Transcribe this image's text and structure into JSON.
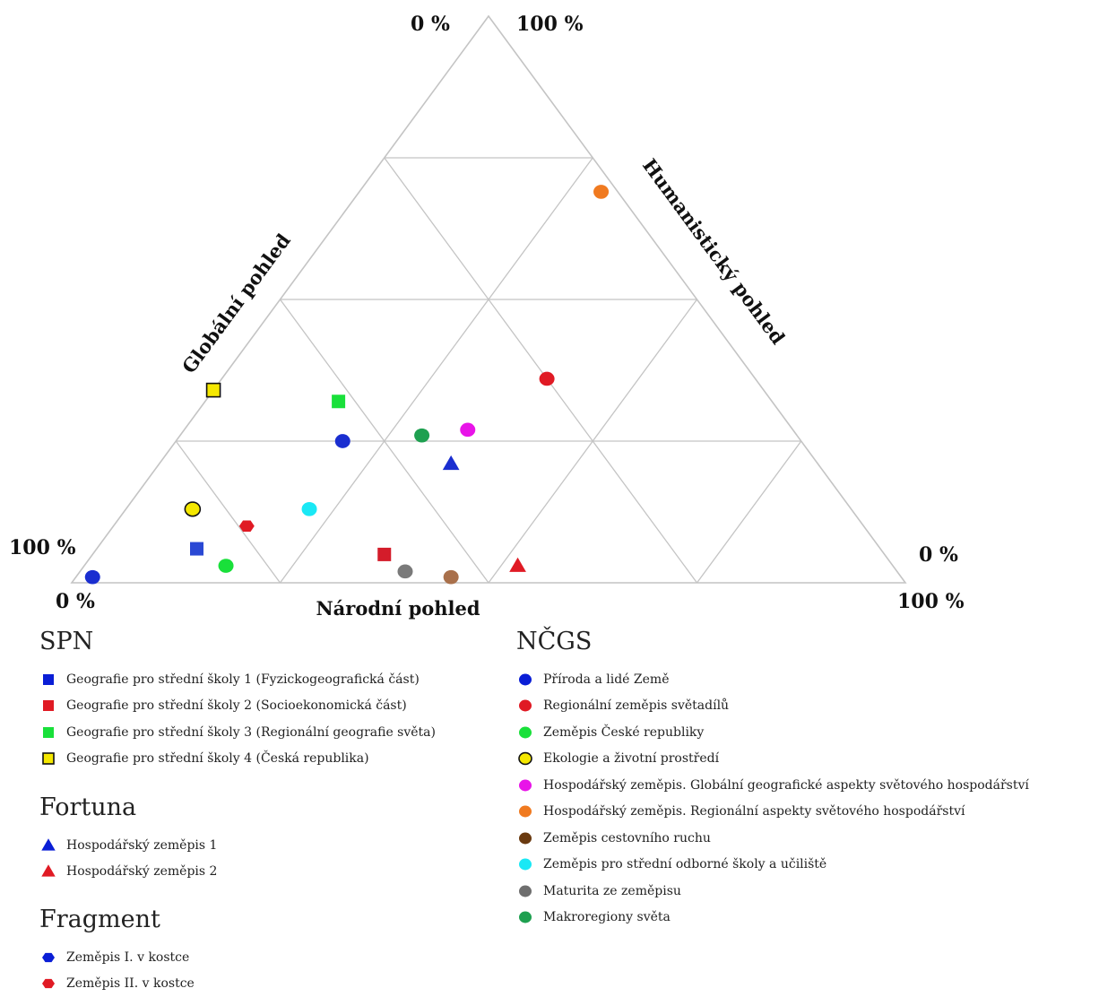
{
  "chart_data": {
    "type": "ternary",
    "corner_labels": {
      "top_left": "0 %",
      "top_right": "100 %",
      "left": "100 %",
      "bottom_left": "0 %",
      "right": "0 %",
      "bottom_right": "100 %"
    },
    "axes": {
      "left": "Globální pohled",
      "right": "Humanistický pohled",
      "bottom": "Národní pohled"
    },
    "grid_divisions": 4,
    "colors": {
      "blue": "#0a1ed6",
      "red": "#e01a24",
      "green": "#19e03a",
      "yellow": "#f5e800",
      "magenta": "#e814e8",
      "orange": "#f07a20",
      "brown": "#a9704b",
      "cyan": "#1ae8f5",
      "gray": "#7a7a7a",
      "darkgreen": "#1ea050",
      "grid": "#c4c4c4"
    },
    "series": [
      {
        "name": "Geografie pro střední školy 1 (Fyzickogeografická část)",
        "marker": "square",
        "fill": "#2a48d4",
        "points": [
          {
            "global": 0.12,
            "national": 0.82,
            "humanistic": 0.06
          }
        ]
      },
      {
        "name": "Geografie pro střední školy 2 (Socioekonomická část)",
        "marker": "square",
        "fill": "#d41c2a",
        "points": [
          {
            "global": 0.35,
            "national": 0.6,
            "humanistic": 0.05
          }
        ]
      },
      {
        "name": "Geografie pro střední školy 3 (Regionální geografie světa)",
        "marker": "square",
        "fill": "#19e03a",
        "points": [
          {
            "global": 0.16,
            "national": 0.52,
            "humanistic": 0.32
          }
        ]
      },
      {
        "name": "Geografie pro střední školy 4 (Česká republika)",
        "marker": "square-outline",
        "fill": "#f5e800",
        "points": [
          {
            "global": 0.0,
            "national": 0.66,
            "humanistic": 0.34
          }
        ]
      },
      {
        "name": "Hospodářský zeměpis 1",
        "marker": "triangle",
        "fill": "#1a2ed0",
        "points": [
          {
            "global": 0.35,
            "national": 0.44,
            "humanistic": 0.21
          }
        ]
      },
      {
        "name": "Hospodářský zeměpis 2",
        "marker": "triangle",
        "fill": "#e01a24",
        "points": [
          {
            "global": 0.52,
            "national": 0.45,
            "humanistic": 0.03
          }
        ]
      },
      {
        "name": "Zeměpis I. v kostce",
        "marker": "hexagon",
        "fill": "#1a2ed0",
        "points": []
      },
      {
        "name": "Zeměpis II. v kostce",
        "marker": "hexagon",
        "fill": "#e01a24",
        "points": [
          {
            "global": 0.16,
            "national": 0.74,
            "humanistic": 0.1
          }
        ]
      },
      {
        "name": "Příroda a lidé Země",
        "marker": "circle",
        "fill": "#1a2ed0",
        "points": [
          {
            "global": 0.02,
            "national": 0.97,
            "humanistic": 0.01
          },
          {
            "global": 0.2,
            "national": 0.55,
            "humanistic": 0.25
          }
        ]
      },
      {
        "name": "Regionální zeměpis světadílů",
        "marker": "circle",
        "fill": "#e01a24",
        "points": [
          {
            "global": 0.39,
            "national": 0.25,
            "humanistic": 0.36
          }
        ]
      },
      {
        "name": "Zeměpis České republiky",
        "marker": "circle",
        "fill": "#19e03a",
        "points": [
          {
            "global": 0.17,
            "national": 0.8,
            "humanistic": 0.03
          }
        ]
      },
      {
        "name": "Ekologie a životní prostředí",
        "marker": "circle-outline",
        "fill": "#f5e800",
        "points": [
          {
            "global": 0.08,
            "national": 0.79,
            "humanistic": 0.13
          }
        ]
      },
      {
        "name": "Hospodářský zeměpis. Globální geografické aspekty světového hospodářství",
        "marker": "circle",
        "fill": "#e814e8",
        "points": [
          {
            "global": 0.34,
            "national": 0.39,
            "humanistic": 0.27
          }
        ]
      },
      {
        "name": "Hospodářský zeměpis. Regionální aspekty světového hospodářství",
        "marker": "circle",
        "fill": "#f07a20",
        "points": [
          {
            "global": 0.29,
            "national": 0.02,
            "humanistic": 0.69
          }
        ]
      },
      {
        "name": "Zeměpis cestovního ruchu",
        "marker": "circle",
        "fill": "#a9704b",
        "points": [
          {
            "global": 0.45,
            "national": 0.54,
            "humanistic": 0.01
          }
        ]
      },
      {
        "name": "Zeměpis pro střední odborné školy a učiliště",
        "marker": "circle",
        "fill": "#1ae8f5",
        "points": [
          {
            "global": 0.22,
            "national": 0.65,
            "humanistic": 0.13
          }
        ]
      },
      {
        "name": "Maturita ze zeměpisu",
        "marker": "circle",
        "fill": "#7a7a7a",
        "points": [
          {
            "global": 0.39,
            "national": 0.59,
            "humanistic": 0.02
          }
        ]
      },
      {
        "name": "Makroregiony světa",
        "marker": "circle",
        "fill": "#1ea050",
        "points": [
          {
            "global": 0.29,
            "national": 0.45,
            "humanistic": 0.26
          }
        ]
      }
    ]
  },
  "legend": {
    "groups": [
      {
        "title": "SPN",
        "items": [
          {
            "label": "Geografie pro střední školy 1 (Fyzickogeografická část)",
            "marker": "square",
            "fill": "#0a1ed6"
          },
          {
            "label": "Geografie pro střední školy 2 (Socioekonomická část)",
            "marker": "square",
            "fill": "#e01a24"
          },
          {
            "label": "Geografie pro střední školy 3 (Regionální geografie světa)",
            "marker": "square",
            "fill": "#19e03a"
          },
          {
            "label": "Geografie pro střední školy 4 (Česká republika)",
            "marker": "square-outline",
            "fill": "#f5e800"
          }
        ]
      },
      {
        "title": "Fortuna",
        "items": [
          {
            "label": "Hospodářský zeměpis 1",
            "marker": "triangle",
            "fill": "#0a1ed6"
          },
          {
            "label": "Hospodářský zeměpis 2",
            "marker": "triangle",
            "fill": "#e01a24"
          }
        ]
      },
      {
        "title": "Fragment",
        "items": [
          {
            "label": "Zeměpis I. v kostce",
            "marker": "hexagon",
            "fill": "#0a1ed6"
          },
          {
            "label": "Zeměpis II. v kostce",
            "marker": "hexagon",
            "fill": "#e01a24"
          }
        ]
      },
      {
        "title": "NČGS",
        "items": [
          {
            "label": "Příroda a lidé Země",
            "marker": "circle",
            "fill": "#0a1ed6"
          },
          {
            "label": "Regionální zeměpis světadílů",
            "marker": "circle",
            "fill": "#e01a24"
          },
          {
            "label": "Zeměpis České republiky",
            "marker": "circle",
            "fill": "#19e03a"
          },
          {
            "label": "Ekologie a životní prostředí",
            "marker": "circle-outline",
            "fill": "#f5e800"
          },
          {
            "label": "Hospodářský zeměpis. Globální geografické aspekty světového hospodářství",
            "marker": "circle",
            "fill": "#e814e8"
          },
          {
            "label": "Hospodářský zeměpis. Regionální aspekty světového hospodářství",
            "marker": "circle",
            "fill": "#f07a20"
          },
          {
            "label": "Zeměpis cestovního ruchu",
            "marker": "circle",
            "fill": "#6a3a10"
          },
          {
            "label": "Zeměpis pro střední odborné školy a učiliště",
            "marker": "circle",
            "fill": "#1ae8f5"
          },
          {
            "label": "Maturita ze zeměpisu",
            "marker": "circle",
            "fill": "#6e6e6e"
          },
          {
            "label": "Makroregiony světa",
            "marker": "circle",
            "fill": "#1ea050"
          }
        ]
      }
    ]
  }
}
